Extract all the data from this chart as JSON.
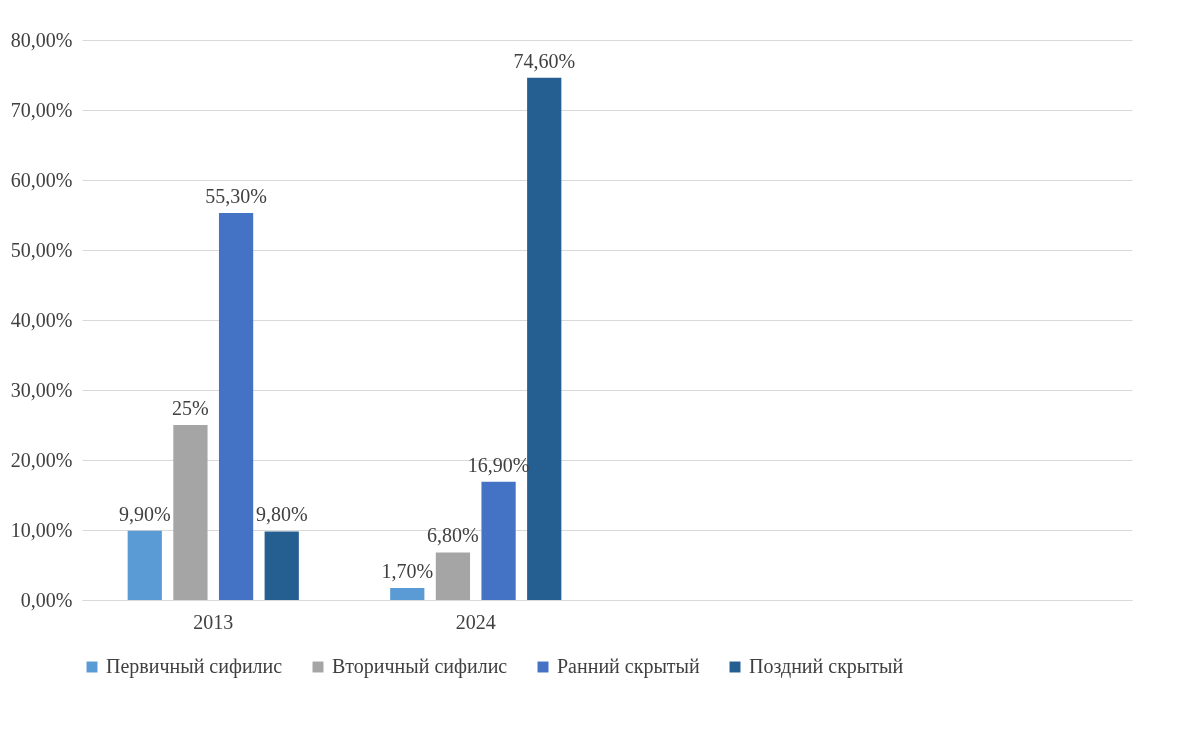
{
  "chart_data": {
    "type": "bar",
    "categories": [
      "2013",
      "2024",
      null,
      null
    ],
    "series": [
      {
        "name": "Первичный сифилис",
        "color": "#5b9bd5",
        "values": [
          9.9,
          1.7,
          null,
          null
        ],
        "value_labels": [
          "9,90%",
          "1,70%",
          null,
          null
        ]
      },
      {
        "name": "Вторичный сифилис",
        "color": "#a5a5a5",
        "values": [
          25,
          6.8,
          null,
          null
        ],
        "value_labels": [
          "25%",
          "6,80%",
          null,
          null
        ]
      },
      {
        "name": "Ранний скрытый",
        "color": "#4472c4",
        "values": [
          55.3,
          16.9,
          null,
          null
        ],
        "value_labels": [
          "55,30%",
          "16,90%",
          null,
          null
        ]
      },
      {
        "name": "Поздний скрытый",
        "color": "#255e91",
        "values": [
          9.8,
          74.6,
          null,
          null
        ],
        "value_labels": [
          "9,80%",
          "74,60%",
          null,
          null
        ]
      }
    ],
    "ylim": [
      0,
      80
    ],
    "yticks": [
      {
        "value": 0,
        "label": "0,00%"
      },
      {
        "value": 10,
        "label": "10,00%"
      },
      {
        "value": 20,
        "label": "20,00%"
      },
      {
        "value": 30,
        "label": "30,00%"
      },
      {
        "value": 40,
        "label": "40,00%"
      },
      {
        "value": 50,
        "label": "50,00%"
      },
      {
        "value": 60,
        "label": "60,00%"
      },
      {
        "value": 70,
        "label": "70,00%"
      },
      {
        "value": 80,
        "label": "80,00%"
      }
    ],
    "grid": "y",
    "legend": "bottom"
  }
}
